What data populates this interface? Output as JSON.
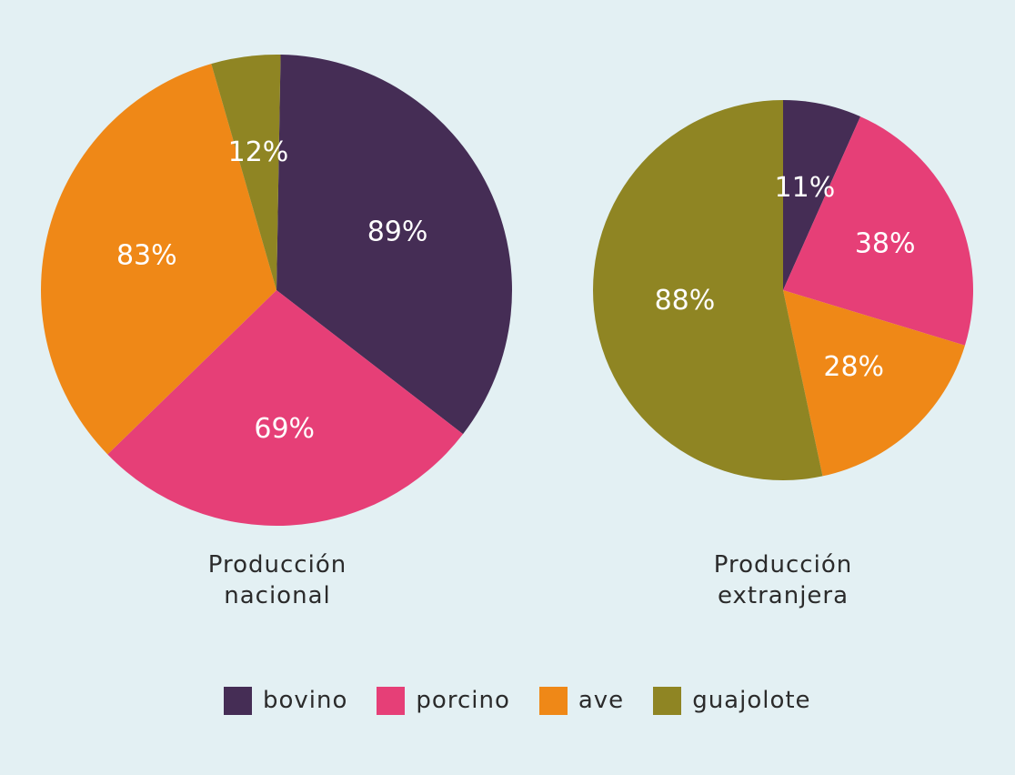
{
  "chart_data": [
    {
      "type": "pie",
      "title_lines": [
        "Producción",
        "nacional"
      ],
      "labels": [
        "bovino",
        "porcino",
        "ave",
        "guajolote"
      ],
      "values": [
        89,
        69,
        83,
        12
      ],
      "value_labels": [
        "89%",
        "69%",
        "83%",
        "12%"
      ]
    },
    {
      "type": "pie",
      "title_lines": [
        "Producción",
        "extranjera"
      ],
      "labels": [
        "bovino",
        "porcino",
        "ave",
        "guajolote"
      ],
      "values": [
        11,
        38,
        28,
        88
      ],
      "value_labels": [
        "11%",
        "38%",
        "28%",
        "88%"
      ]
    }
  ],
  "legend": [
    {
      "label": "bovino",
      "color": "#452d55"
    },
    {
      "label": "porcino",
      "color": "#e63f77"
    },
    {
      "label": "ave",
      "color": "#ef8817"
    },
    {
      "label": "guajolote",
      "color": "#8f8523"
    }
  ]
}
